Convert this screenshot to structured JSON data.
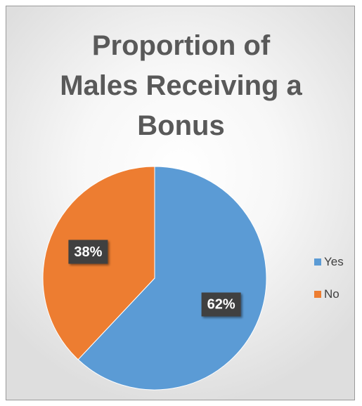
{
  "chart_data": {
    "type": "pie",
    "title_lines": [
      "Proportion of",
      "Males Receiving a",
      "Bonus"
    ],
    "categories": [
      "Yes",
      "No"
    ],
    "values": [
      62,
      38
    ],
    "value_labels": [
      "62%",
      "38%"
    ],
    "colors": [
      "#5B9BD5",
      "#ED7D31"
    ],
    "legend_position": "right"
  }
}
